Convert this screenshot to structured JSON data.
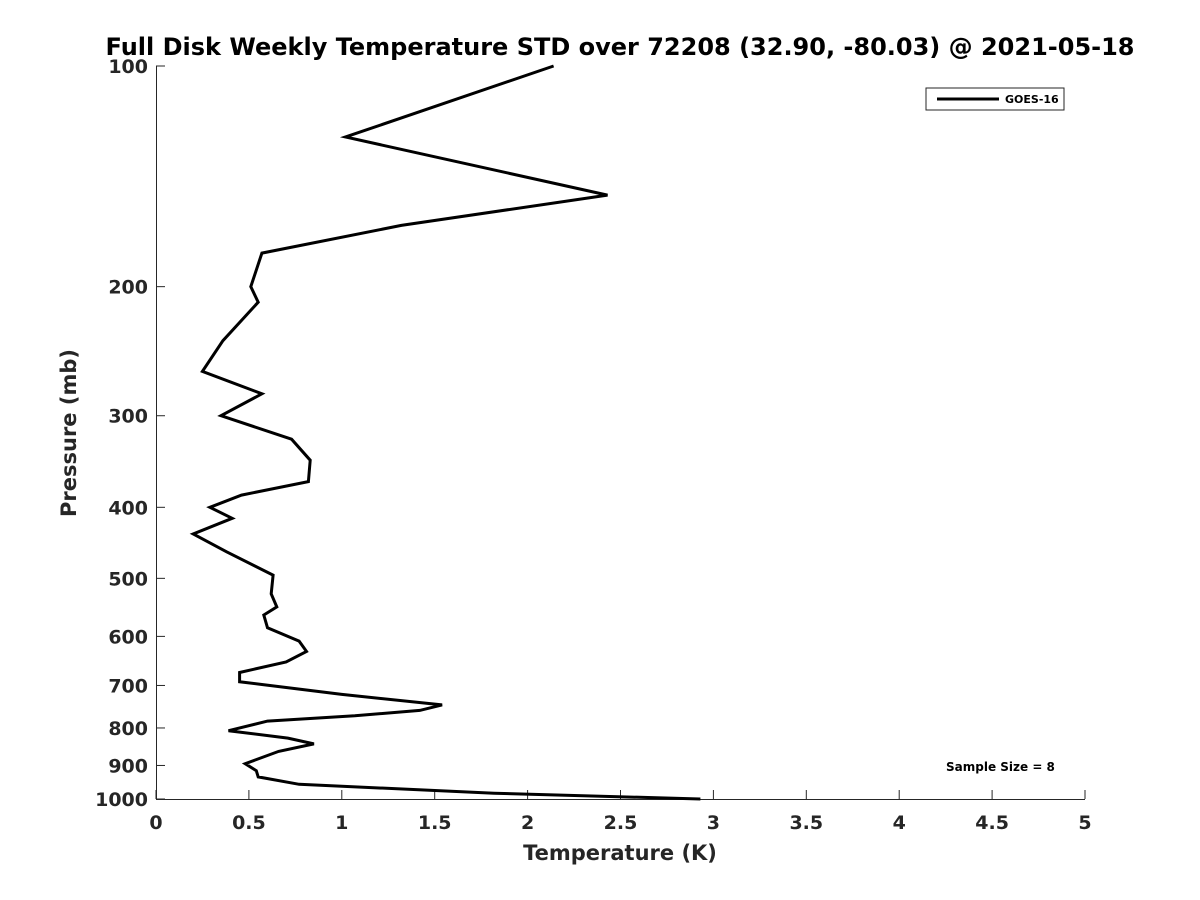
{
  "chart_data": {
    "type": "line",
    "title": "Full Disk Weekly Temperature STD over 72208 (32.90, -80.03) @ 2021-05-18",
    "xlabel": "Temperature (K)",
    "ylabel": "Pressure (mb)",
    "xlim": [
      0,
      5
    ],
    "ylim": [
      100,
      1000
    ],
    "y_scale": "log",
    "y_reversed": true,
    "x_ticks": [
      "0",
      "0.5",
      "1",
      "1.5",
      "2",
      "2.5",
      "3",
      "3.5",
      "4",
      "4.5",
      "5"
    ],
    "y_ticks": [
      "100",
      "200",
      "300",
      "400",
      "500",
      "600",
      "700",
      "800",
      "900",
      "1000"
    ],
    "legend_position": "top-right",
    "annotation": "Sample Size = 8",
    "series": [
      {
        "name": "GOES-16",
        "color": "#000000",
        "x": [
          2.14,
          1.02,
          2.43,
          1.32,
          0.57,
          0.51,
          0.55,
          0.36,
          0.25,
          0.57,
          0.35,
          0.73,
          0.83,
          0.82,
          0.46,
          0.29,
          0.41,
          0.2,
          0.38,
          0.63,
          0.62,
          0.65,
          0.58,
          0.6,
          0.77,
          0.81,
          0.7,
          0.45,
          0.45,
          0.57,
          1.0,
          1.54,
          1.42,
          1.07,
          0.6,
          0.39,
          0.71,
          0.85,
          0.66,
          0.48,
          0.54,
          0.55,
          0.77,
          1.82,
          2.93
        ],
        "y": [
          100,
          125,
          150,
          165,
          180,
          200,
          210,
          237,
          261,
          280,
          300,
          323,
          345,
          369,
          385,
          400,
          414,
          435,
          460,
          495,
          525,
          547,
          561,
          584,
          609,
          629,
          650,
          672,
          692,
          698,
          720,
          744,
          757,
          770,
          783,
          807,
          826,
          841,
          861,
          895,
          915,
          933,
          955,
          982,
          1000
        ]
      }
    ]
  }
}
